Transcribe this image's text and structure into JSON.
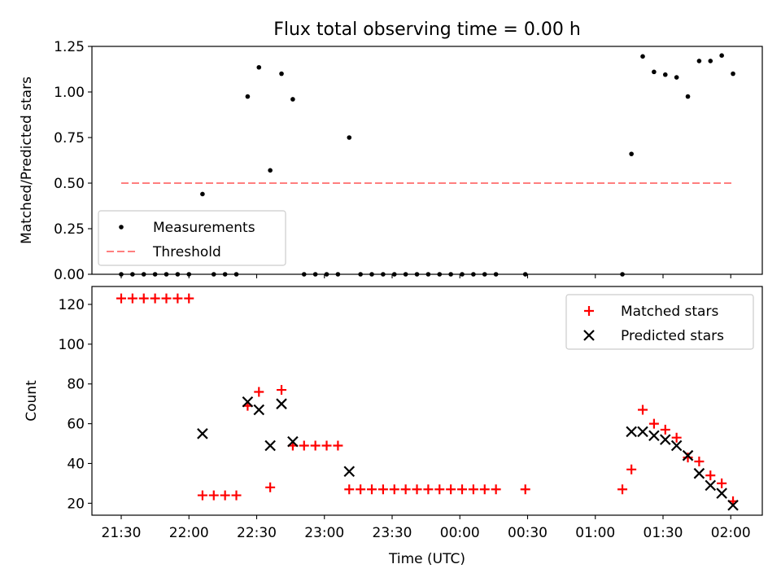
{
  "chart_data": [
    {
      "type": "scatter",
      "title": "Flux total observing time = 0.00 h",
      "xlabel": "",
      "ylabel": "Matched/Predicted stars",
      "ylim": [
        0,
        1.25
      ],
      "yticks": [
        "0.00",
        "0.25",
        "0.50",
        "0.75",
        "1.00",
        "1.25"
      ],
      "ytick_values": [
        0,
        0.25,
        0.5,
        0.75,
        1.0,
        1.25
      ],
      "grid": false,
      "legend": "lower-left",
      "series": [
        {
          "name": "Measurements",
          "marker": "dot",
          "color": "#000000",
          "points": [
            [
              "21:30",
              0
            ],
            [
              "21:35",
              0
            ],
            [
              "21:40",
              0
            ],
            [
              "21:45",
              0
            ],
            [
              "21:50",
              0
            ],
            [
              "21:55",
              0
            ],
            [
              "22:00",
              0
            ],
            [
              "22:06",
              0.44
            ],
            [
              "22:11",
              0
            ],
            [
              "22:16",
              0
            ],
            [
              "22:21",
              0
            ],
            [
              "22:26",
              0.975
            ],
            [
              "22:31",
              1.135
            ],
            [
              "22:36",
              0.57
            ],
            [
              "22:41",
              1.1
            ],
            [
              "22:46",
              0.96
            ],
            [
              "22:51",
              0
            ],
            [
              "22:56",
              0
            ],
            [
              "23:01",
              0
            ],
            [
              "23:06",
              0
            ],
            [
              "23:11",
              0.75
            ],
            [
              "23:16",
              0
            ],
            [
              "23:21",
              0
            ],
            [
              "23:26",
              0
            ],
            [
              "23:31",
              0
            ],
            [
              "23:36",
              0
            ],
            [
              "23:41",
              0
            ],
            [
              "23:46",
              0
            ],
            [
              "23:51",
              0
            ],
            [
              "23:56",
              0
            ],
            [
              "00:01",
              0
            ],
            [
              "00:06",
              0
            ],
            [
              "00:11",
              0
            ],
            [
              "00:16",
              0
            ],
            [
              "00:29",
              0
            ],
            [
              "01:12",
              0
            ],
            [
              "01:16",
              0.66
            ],
            [
              "01:21",
              1.195
            ],
            [
              "01:26",
              1.11
            ],
            [
              "01:31",
              1.095
            ],
            [
              "01:36",
              1.08
            ],
            [
              "01:41",
              0.975
            ],
            [
              "01:46",
              1.17
            ],
            [
              "01:51",
              1.17
            ],
            [
              "01:56",
              1.2
            ],
            [
              "02:01",
              1.1
            ]
          ]
        },
        {
          "name": "Threshold",
          "marker": "dashed-line",
          "color": "#ff7f7f",
          "points": [
            [
              "21:30",
              0.5
            ],
            [
              "02:01",
              0.5
            ]
          ]
        }
      ]
    },
    {
      "type": "scatter",
      "title": "",
      "xlabel": "Time (UTC)",
      "ylabel": "Count",
      "ylim": [
        14,
        129
      ],
      "yticks": [
        "20",
        "40",
        "60",
        "80",
        "100",
        "120"
      ],
      "ytick_values": [
        20,
        40,
        60,
        80,
        100,
        120
      ],
      "xticks": [
        "21:30",
        "22:00",
        "22:30",
        "23:00",
        "23:30",
        "00:00",
        "00:30",
        "01:00",
        "01:30",
        "02:00"
      ],
      "grid": false,
      "legend": "top-right",
      "series": [
        {
          "name": "Matched stars",
          "marker": "plus",
          "color": "#ff0000",
          "points": [
            [
              "21:30",
              123
            ],
            [
              "21:35",
              123
            ],
            [
              "21:40",
              123
            ],
            [
              "21:45",
              123
            ],
            [
              "21:50",
              123
            ],
            [
              "21:55",
              123
            ],
            [
              "22:00",
              123
            ],
            [
              "22:06",
              24
            ],
            [
              "22:11",
              24
            ],
            [
              "22:16",
              24
            ],
            [
              "22:21",
              24
            ],
            [
              "22:26",
              69
            ],
            [
              "22:31",
              76
            ],
            [
              "22:36",
              28
            ],
            [
              "22:41",
              77
            ],
            [
              "22:46",
              49
            ],
            [
              "22:51",
              49
            ],
            [
              "22:56",
              49
            ],
            [
              "23:01",
              49
            ],
            [
              "23:06",
              49
            ],
            [
              "23:11",
              27
            ],
            [
              "23:16",
              27
            ],
            [
              "23:21",
              27
            ],
            [
              "23:26",
              27
            ],
            [
              "23:31",
              27
            ],
            [
              "23:36",
              27
            ],
            [
              "23:41",
              27
            ],
            [
              "23:46",
              27
            ],
            [
              "23:51",
              27
            ],
            [
              "23:56",
              27
            ],
            [
              "00:01",
              27
            ],
            [
              "00:06",
              27
            ],
            [
              "00:11",
              27
            ],
            [
              "00:16",
              27
            ],
            [
              "00:29",
              27
            ],
            [
              "01:12",
              27
            ],
            [
              "01:16",
              37
            ],
            [
              "01:21",
              67
            ],
            [
              "01:26",
              60
            ],
            [
              "01:31",
              57
            ],
            [
              "01:36",
              53
            ],
            [
              "01:41",
              43
            ],
            [
              "01:46",
              41
            ],
            [
              "01:51",
              34
            ],
            [
              "01:56",
              30
            ],
            [
              "02:01",
              21
            ]
          ]
        },
        {
          "name": "Predicted stars",
          "marker": "x",
          "color": "#000000",
          "points": [
            [
              "22:06",
              55
            ],
            [
              "22:26",
              71
            ],
            [
              "22:31",
              67
            ],
            [
              "22:36",
              49
            ],
            [
              "22:41",
              70
            ],
            [
              "22:46",
              51
            ],
            [
              "23:11",
              36
            ],
            [
              "01:16",
              56
            ],
            [
              "01:21",
              56
            ],
            [
              "01:26",
              54
            ],
            [
              "01:31",
              52
            ],
            [
              "01:36",
              49
            ],
            [
              "01:41",
              44
            ],
            [
              "01:46",
              35
            ],
            [
              "01:51",
              29
            ],
            [
              "01:56",
              25
            ],
            [
              "02:01",
              19
            ]
          ]
        }
      ]
    }
  ]
}
